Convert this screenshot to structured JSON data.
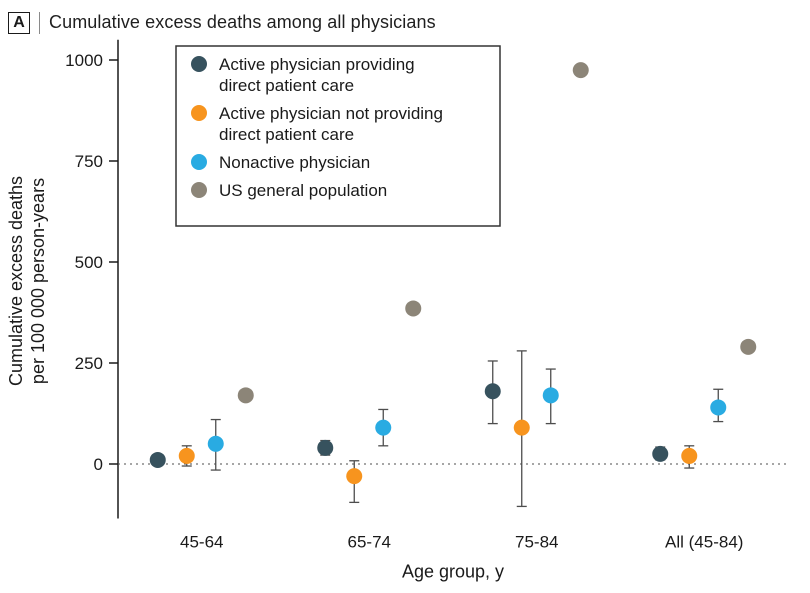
{
  "panel": {
    "label": "A",
    "title": "Cumulative excess deaths among all physicians"
  },
  "chart_data": {
    "type": "scatter",
    "title": "Cumulative excess deaths among all physicians",
    "xlabel": "Age group, y",
    "ylabel_lines": [
      "Cumulative excess deaths",
      "per 100 000 person-years"
    ],
    "categories": [
      "45-64",
      "65-74",
      "75-84",
      "All (45-84)"
    ],
    "yticks": [
      0,
      250,
      500,
      750,
      1000
    ],
    "ylim": [
      -135,
      1050
    ],
    "zero_line": true,
    "legend_position": "top-left",
    "error_bar_color": "#4d4d4d",
    "series": [
      {
        "name": "Active physician providing direct patient care",
        "label_lines": [
          "Active physician providing",
          "direct patient care"
        ],
        "color": "#37525E",
        "values": [
          10,
          40,
          180,
          25
        ],
        "ci_low": [
          0,
          22,
          100,
          10
        ],
        "ci_high": [
          22,
          58,
          255,
          42
        ]
      },
      {
        "name": "Active physician not providing direct patient care",
        "label_lines": [
          "Active physician not providing",
          "direct patient care"
        ],
        "color": "#F7941E",
        "values": [
          20,
          -30,
          90,
          20
        ],
        "ci_low": [
          -5,
          -95,
          -105,
          -10
        ],
        "ci_high": [
          45,
          8,
          280,
          45
        ]
      },
      {
        "name": "Nonactive physician",
        "label_lines": [
          "Nonactive physician"
        ],
        "color": "#29ABE2",
        "values": [
          50,
          90,
          170,
          140
        ],
        "ci_low": [
          -15,
          45,
          100,
          105
        ],
        "ci_high": [
          110,
          135,
          235,
          185
        ]
      },
      {
        "name": "US general population",
        "label_lines": [
          "US general population"
        ],
        "color": "#8C8578",
        "values": [
          170,
          385,
          975,
          290
        ],
        "ci_low": [
          null,
          null,
          null,
          null
        ],
        "ci_high": [
          null,
          null,
          null,
          null
        ]
      }
    ]
  }
}
